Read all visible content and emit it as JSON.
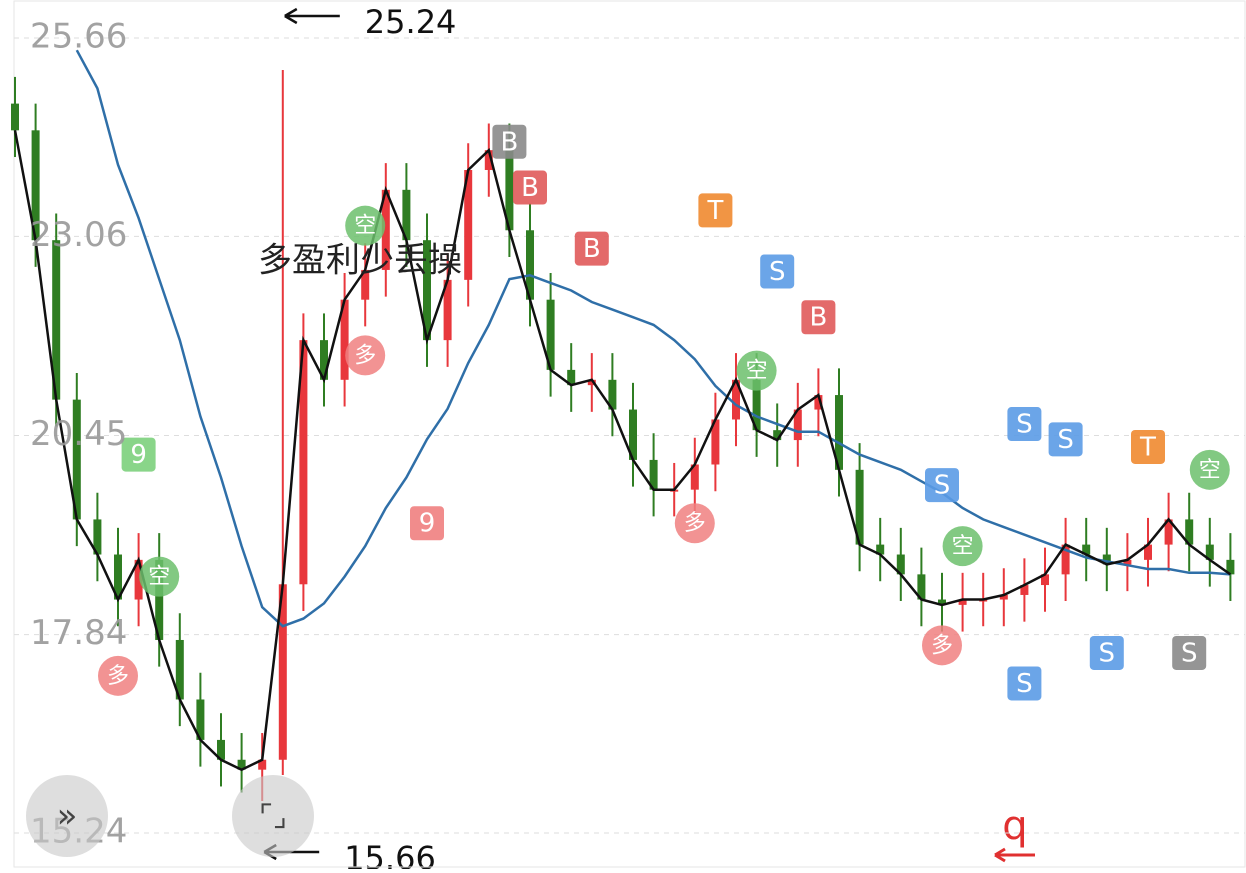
{
  "chart_data": {
    "type": "candlestick",
    "categories": [
      null,
      null,
      null,
      null,
      null,
      null,
      null,
      null,
      null,
      null,
      null,
      null,
      null,
      null,
      null,
      null,
      null,
      null,
      null,
      null,
      null,
      null,
      null,
      null,
      null,
      null,
      null,
      null,
      null,
      null,
      null,
      null,
      null,
      null,
      null,
      null,
      null,
      null,
      null,
      null,
      null,
      null,
      null,
      null,
      null,
      null,
      null,
      null,
      null,
      null,
      null,
      null,
      null,
      null,
      null,
      null,
      null,
      null,
      null,
      null
    ],
    "open": [
      24.8,
      24.45,
      23.01,
      20.92,
      19.35,
      18.89,
      18.3,
      18.82,
      17.77,
      16.99,
      16.46,
      16.2,
      16.07,
      16.2,
      18.5,
      21.7,
      21.18,
      22.23,
      22.62,
      23.67,
      23.01,
      21.7,
      22.49,
      23.93,
      24.19,
      23.14,
      22.23,
      21.31,
      21.11,
      21.18,
      20.79,
      20.13,
      19.74,
      19.74,
      20.07,
      20.66,
      21.18,
      20.52,
      20.39,
      20.79,
      20.98,
      20.0,
      19.02,
      18.89,
      18.63,
      18.3,
      18.23,
      18.3,
      18.3,
      18.36,
      18.49,
      18.63,
      19.02,
      18.89,
      18.76,
      18.82,
      19.02,
      19.35,
      19.02,
      18.82
    ],
    "high": [
      25.15,
      24.8,
      23.36,
      21.27,
      19.7,
      19.24,
      19.17,
      19.17,
      18.12,
      17.34,
      16.81,
      16.55,
      16.55,
      25.24,
      22.05,
      22.05,
      22.58,
      22.97,
      24.02,
      24.02,
      23.36,
      22.84,
      24.28,
      24.54,
      24.54,
      23.49,
      22.58,
      21.66,
      21.53,
      21.53,
      21.14,
      20.48,
      20.09,
      20.42,
      21.01,
      21.53,
      21.53,
      20.87,
      21.14,
      21.33,
      21.33,
      20.35,
      19.37,
      19.24,
      18.98,
      18.65,
      18.65,
      18.65,
      18.71,
      18.84,
      18.98,
      19.37,
      19.37,
      19.24,
      19.17,
      19.37,
      19.7,
      19.7,
      19.37,
      19.17
    ],
    "low": [
      24.1,
      22.66,
      20.57,
      19.0,
      18.54,
      17.95,
      17.95,
      17.42,
      16.64,
      16.11,
      15.85,
      15.77,
      15.66,
      16.0,
      18.15,
      20.83,
      20.83,
      21.88,
      22.27,
      22.66,
      21.35,
      21.35,
      22.14,
      23.58,
      22.79,
      21.88,
      20.96,
      20.76,
      20.76,
      20.44,
      19.78,
      19.39,
      19.39,
      19.39,
      19.72,
      20.31,
      20.17,
      20.04,
      20.04,
      20.44,
      19.65,
      18.67,
      18.54,
      18.28,
      17.95,
      17.88,
      17.88,
      17.95,
      17.95,
      18.01,
      18.14,
      18.28,
      18.54,
      18.41,
      18.41,
      18.47,
      18.67,
      18.67,
      18.47,
      18.28
    ],
    "close": [
      24.45,
      23.01,
      20.92,
      19.35,
      18.89,
      18.3,
      18.82,
      17.77,
      16.99,
      16.46,
      16.2,
      16.07,
      16.2,
      18.5,
      21.7,
      21.18,
      22.23,
      22.62,
      23.67,
      23.01,
      21.7,
      22.49,
      23.93,
      24.19,
      23.14,
      22.23,
      21.31,
      21.11,
      21.18,
      20.79,
      20.13,
      19.74,
      19.74,
      20.07,
      20.66,
      21.18,
      20.52,
      20.39,
      20.79,
      20.98,
      20.0,
      19.02,
      18.89,
      18.63,
      18.3,
      18.23,
      18.3,
      18.3,
      18.36,
      18.49,
      18.63,
      19.02,
      18.89,
      18.76,
      18.82,
      19.02,
      19.35,
      19.02,
      18.82,
      18.63
    ],
    "up_color": "#e8373c",
    "down_color": "#2f7d22",
    "lines": [
      {
        "color": "#2f6fa8",
        "values": [
          null,
          null,
          null,
          25.5,
          25.0,
          24.0,
          23.3,
          22.5,
          21.7,
          20.7,
          19.9,
          19.0,
          18.2,
          17.95,
          18.05,
          18.25,
          18.6,
          19.0,
          19.5,
          19.9,
          20.4,
          20.8,
          21.4,
          21.9,
          22.5,
          22.55,
          22.45,
          22.35,
          22.2,
          22.1,
          22.0,
          21.9,
          21.7,
          21.45,
          21.1,
          20.85,
          20.7,
          20.6,
          20.5,
          20.5,
          20.35,
          20.2,
          20.1,
          20.0,
          19.85,
          19.7,
          19.5,
          19.35,
          19.25,
          19.15,
          19.05,
          18.95,
          18.85,
          18.8,
          18.75,
          18.7,
          18.7,
          18.65,
          18.65,
          18.63
        ]
      },
      {
        "color": "#111111",
        "values": [
          24.45,
          23.01,
          20.92,
          19.35,
          18.89,
          18.3,
          18.82,
          17.77,
          16.99,
          16.46,
          16.2,
          16.07,
          16.2,
          18.5,
          21.7,
          21.18,
          22.23,
          22.62,
          23.67,
          23.01,
          21.7,
          22.49,
          23.93,
          24.19,
          23.14,
          22.23,
          21.31,
          21.11,
          21.18,
          20.79,
          20.13,
          19.74,
          19.74,
          20.07,
          20.66,
          21.18,
          20.52,
          20.39,
          20.79,
          20.98,
          20.0,
          19.02,
          18.89,
          18.63,
          18.3,
          18.23,
          18.3,
          18.3,
          18.36,
          18.49,
          18.63,
          19.02,
          18.89,
          18.76,
          18.82,
          19.02,
          19.35,
          19.02,
          18.82,
          18.63
        ]
      }
    ],
    "signals": [
      {
        "label": "B",
        "index": 24,
        "price": 24.3,
        "color": "#8a8a8a"
      },
      {
        "label": "B",
        "index": 25,
        "price": 23.7,
        "color": "#e05a5a"
      },
      {
        "label": "B",
        "index": 28,
        "price": 22.9,
        "color": "#e05a5a"
      },
      {
        "label": "T",
        "index": 34,
        "price": 23.4,
        "color": "#f08a30"
      },
      {
        "label": "S",
        "index": 37,
        "price": 22.6,
        "color": "#5b9be6"
      },
      {
        "label": "B",
        "index": 39,
        "price": 22.0,
        "color": "#e05a5a"
      },
      {
        "label": "S",
        "index": 45,
        "price": 19.8,
        "color": "#5b9be6"
      },
      {
        "label": "S",
        "index": 49,
        "price": 20.6,
        "color": "#5b9be6"
      },
      {
        "label": "S",
        "index": 51,
        "price": 20.4,
        "color": "#5b9be6"
      },
      {
        "label": "T",
        "index": 55,
        "price": 20.3,
        "color": "#f08a30"
      },
      {
        "label": "S",
        "index": 49,
        "price": 17.2,
        "color": "#5b9be6"
      },
      {
        "label": "S",
        "index": 53,
        "price": 17.6,
        "color": "#5b9be6"
      },
      {
        "label": "S",
        "index": 57,
        "price": 17.6,
        "color": "#8a8a8a"
      },
      {
        "label": "多",
        "index": 5,
        "price": 17.3,
        "color": "#f08080"
      },
      {
        "label": "空",
        "index": 7,
        "price": 18.6,
        "color": "#6cc06c"
      },
      {
        "label": "9",
        "index": 6,
        "price": 20.2,
        "color": "#7cd07c"
      },
      {
        "label": "多",
        "index": 17,
        "price": 21.5,
        "color": "#f08080"
      },
      {
        "label": "空",
        "index": 17,
        "price": 23.2,
        "color": "#6cc06c"
      },
      {
        "label": "9",
        "index": 20,
        "price": 19.3,
        "color": "#f08080"
      },
      {
        "label": "多",
        "index": 33,
        "price": 19.3,
        "color": "#f08080"
      },
      {
        "label": "空",
        "index": 36,
        "price": 21.3,
        "color": "#6cc06c"
      },
      {
        "label": "多",
        "index": 45,
        "price": 17.7,
        "color": "#f08080"
      },
      {
        "label": "空",
        "index": 46,
        "price": 19.0,
        "color": "#6cc06c"
      },
      {
        "label": "空",
        "index": 58,
        "price": 20.0,
        "color": "#6cc06c"
      }
    ],
    "annotations": [
      {
        "text": "25.24",
        "index": 13,
        "price": 25.24
      },
      {
        "text": "15.66",
        "index": 12,
        "price": 15.66
      }
    ],
    "note": "多盈利少丢操",
    "marker": "q",
    "ylim": [
      15.24,
      25.66
    ],
    "yticks": [
      25.66,
      23.06,
      20.45,
      17.84,
      15.24
    ],
    "grid": true
  }
}
